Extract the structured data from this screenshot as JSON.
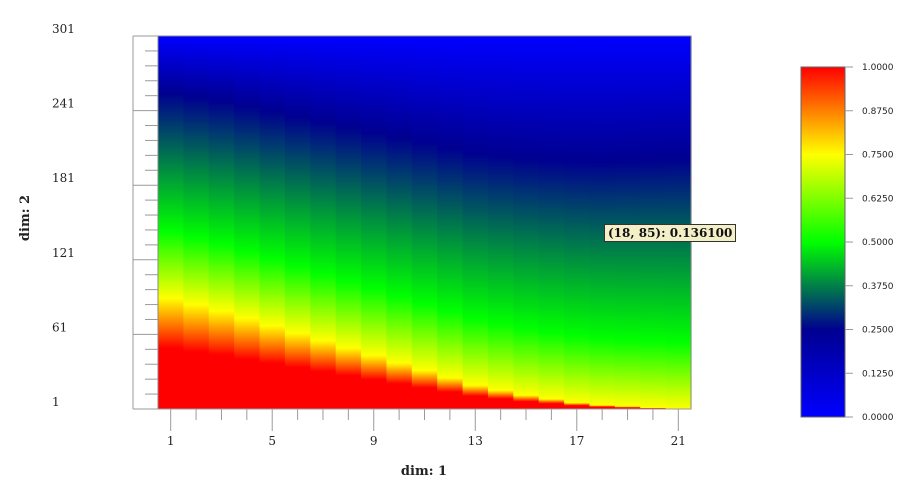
{
  "chart_data": {
    "type": "heatmap",
    "xlabel": "dim: 1",
    "ylabel": "dim: 2",
    "x_ticks": [
      "1",
      "5",
      "9",
      "13",
      "17",
      "21"
    ],
    "y_ticks": [
      "1",
      "61",
      "121",
      "181",
      "241",
      "301"
    ],
    "x_range": [
      1,
      21
    ],
    "y_range": [
      1,
      301
    ],
    "value_range": [
      0,
      1
    ],
    "colormap": [
      "#0000ff",
      "#000090",
      "#00ff00",
      "#ffff00",
      "#ff0000"
    ],
    "colorbar_ticks": [
      "1.0000",
      "0.8750",
      "0.7500",
      "0.6250",
      "0.5000",
      "0.3750",
      "0.2500",
      "0.1250",
      "0.0000"
    ],
    "yellow_band_row": [
      90,
      85,
      80,
      74,
      68,
      62,
      56,
      50,
      44,
      38,
      32,
      26,
      20,
      16,
      12,
      9,
      6,
      4,
      3,
      2,
      1
    ],
    "tooltip": "(18, 85): 0.136100"
  }
}
